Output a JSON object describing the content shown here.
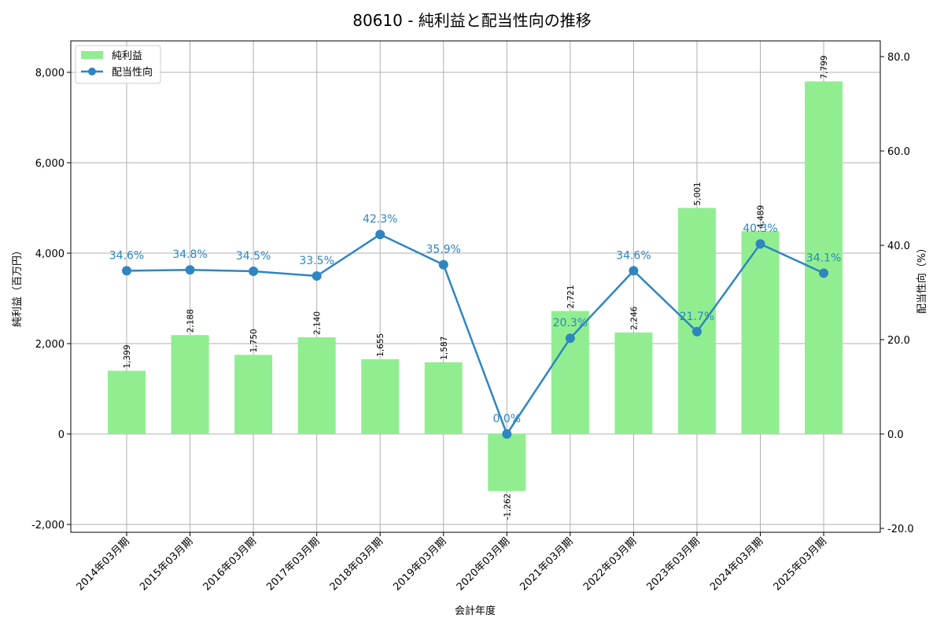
{
  "chart_data": {
    "type": "bar+line",
    "title": "80610 - 純利益と配当性向の推移",
    "xlabel": "会計年度",
    "ylabel_left": "純利益（百万円）",
    "ylabel_right": "配当性向（%）",
    "categories": [
      "2014年03月期",
      "2015年03月期",
      "2016年03月期",
      "2017年03月期",
      "2018年03月期",
      "2019年03月期",
      "2020年03月期",
      "2021年03月期",
      "2022年03月期",
      "2023年03月期",
      "2024年03月期",
      "2025年03月期"
    ],
    "series": [
      {
        "name": "純利益",
        "type": "bar",
        "axis": "left",
        "color": "#90EE90",
        "values": [
          1399,
          2188,
          1750,
          2140,
          1655,
          1587,
          -1262,
          2721,
          2246,
          5001,
          4489,
          7799
        ],
        "labels": [
          "1,399",
          "2,188",
          "1,750",
          "2,140",
          "1,655",
          "1,587",
          "-1,262",
          "2,721",
          "2,246",
          "5,001",
          "4,489",
          "7,799"
        ]
      },
      {
        "name": "配当性向",
        "type": "line",
        "axis": "right",
        "color": "#2E86C1",
        "values": [
          34.6,
          34.8,
          34.5,
          33.5,
          42.3,
          35.9,
          0.0,
          20.3,
          34.6,
          21.7,
          40.3,
          34.1
        ],
        "labels": [
          "34.6%",
          "34.8%",
          "34.5%",
          "33.5%",
          "42.3%",
          "35.9%",
          "0.0%",
          "20.3%",
          "34.6%",
          "21.7%",
          "40.3%",
          "34.1%"
        ]
      }
    ],
    "left_axis": {
      "ylim": [
        -2200,
        8700
      ],
      "ticks": [
        -2000,
        0,
        2000,
        4000,
        6000,
        8000
      ],
      "tick_labels": [
        "-2,000",
        "0",
        "2,000",
        "4,000",
        "6,000",
        "8,000"
      ]
    },
    "right_axis": {
      "ylim": [
        -20.8,
        80.0
      ],
      "ticks": [
        -20,
        0,
        20,
        40,
        60,
        80
      ],
      "tick_labels": [
        "-20.0",
        "0.0",
        "20.0",
        "40.0",
        "60.0",
        "80.0"
      ]
    },
    "grid": true,
    "legend": {
      "position": "upper left",
      "entries": [
        "純利益",
        "配当性向"
      ]
    }
  }
}
